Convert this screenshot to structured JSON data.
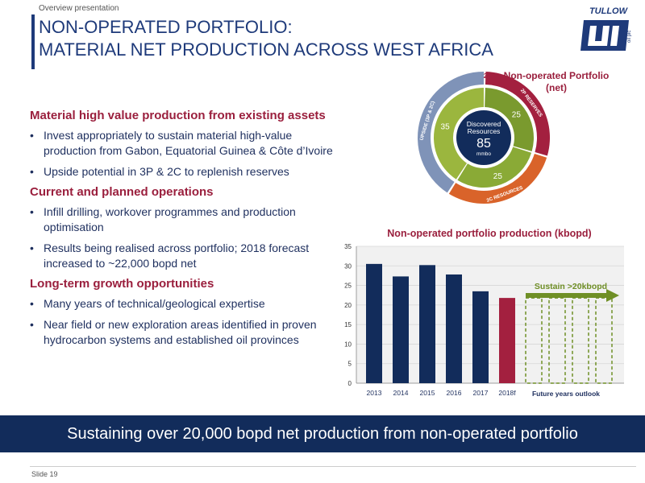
{
  "header": {
    "kicker": "Overview presentation",
    "title_line1": "NON-OPERATED PORTFOLIO:",
    "title_line2": "MATERIAL NET PRODUCTION ACROSS WEST AFRICA",
    "logo_text": "TULLOW",
    "logo_sub": "oil plc"
  },
  "sections": [
    {
      "heading": "Material high value production from existing assets",
      "bullets": [
        "Invest appropriately to sustain material high-value production from Gabon, Equatorial Guinea & Côte d’Ivoire",
        "Upside potential in 3P & 2C to replenish reserves"
      ]
    },
    {
      "heading": "Current and planned operations",
      "bullets": [
        "Infill drilling, workover programmes and production optimisation",
        "Results being realised across portfolio; 2018 forecast increased to ~22,000 bopd net"
      ]
    },
    {
      "heading": "Long-term growth opportunities",
      "bullets": [
        "Many years of technical/geological expertise",
        "Near field or new exploration areas identified in proven hydrocarbon systems and established oil provinces"
      ]
    }
  ],
  "donut": {
    "label": "Non-operated Portfolio (net)",
    "center_title_1": "Discovered",
    "center_title_2": "Resources",
    "center_value": "85",
    "center_unit": "mmbo",
    "segments": [
      {
        "name": "2P RESERVES",
        "value": 25,
        "outer_color": "#a3203f",
        "inner_color": "#7a9a2e"
      },
      {
        "name": "2C RESOURCES",
        "value": 25,
        "outer_color": "#d9632a",
        "inner_color": "#8aaa36"
      },
      {
        "name": "UPSIDE (3P & 2C)",
        "value": 35,
        "outer_color": "#7f93b8",
        "inner_color": "#9bb63e"
      }
    ],
    "top_marker": "2"
  },
  "chart_data": {
    "type": "bar",
    "title": "Non-operated portfolio production (kbopd)",
    "categories": [
      "2013",
      "2014",
      "2015",
      "2016",
      "2017",
      "2018f"
    ],
    "values": [
      30.5,
      27.3,
      30.2,
      27.8,
      23.5,
      21.8
    ],
    "bar_colors": [
      "#122c5b",
      "#122c5b",
      "#122c5b",
      "#122c5b",
      "#122c5b",
      "#a3203f"
    ],
    "ylim": [
      0,
      35
    ],
    "yticks": [
      0,
      5,
      10,
      15,
      20,
      25,
      30,
      35
    ],
    "grid": true,
    "future_label": "Future years outlook",
    "future_bars": 4,
    "future_value": 21.8,
    "annotation": "Sustain >20kbopd",
    "annotation_color": "#6f8f26"
  },
  "banner": {
    "text": "Sustaining over 20,000 bopd net production from non-operated portfolio"
  },
  "footer": {
    "slide_number": "Slide 19"
  }
}
